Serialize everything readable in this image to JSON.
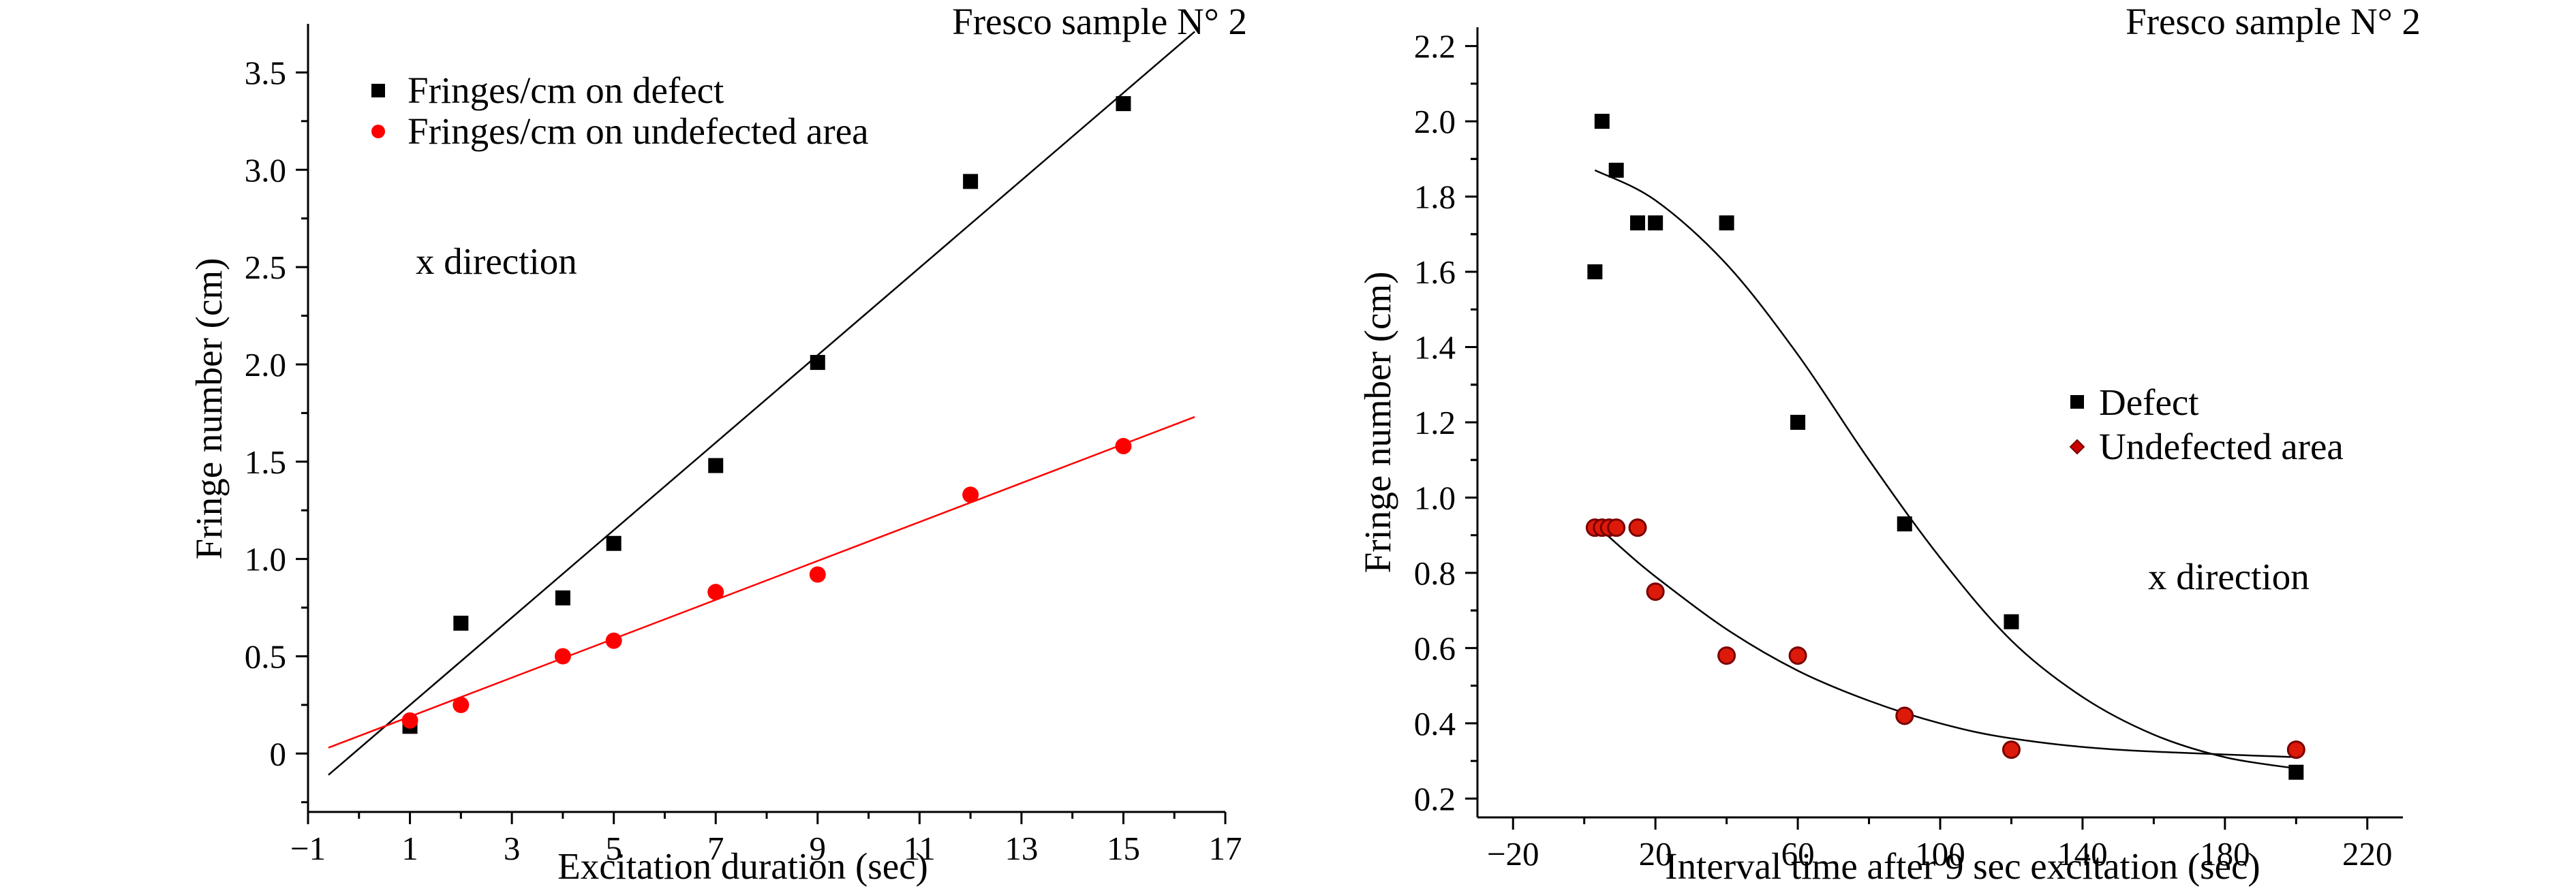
{
  "chart_data": [
    {
      "type": "scatter",
      "title": "Fresco sample N° 2",
      "xlabel": "Excitation duration (sec)",
      "ylabel": "Fringe number (cm)",
      "xlim": [
        -1,
        17
      ],
      "ylim": [
        -0.3,
        3.75
      ],
      "xticks": [
        -1,
        1,
        3,
        5,
        7,
        9,
        11,
        13,
        15,
        17
      ],
      "xtick_labels": [
        "−1",
        "1",
        "3",
        "5",
        "7",
        "9",
        "11",
        "13",
        "15",
        "17"
      ],
      "yticks": [
        0,
        0.5,
        1.0,
        1.5,
        2.0,
        2.5,
        3.0,
        3.5
      ],
      "ytick_labels": [
        "0",
        "0.5",
        "1.0",
        "1.5",
        "2.0",
        "2.5",
        "3.0",
        "3.5"
      ],
      "grid": false,
      "legend_position": "top-left",
      "annotation": "x direction",
      "series": [
        {
          "name": "Fringes/cm on defect",
          "marker": "square",
          "color": "#000000",
          "x": [
            1,
            2,
            4,
            5,
            7,
            9,
            12,
            15
          ],
          "y": [
            0.14,
            0.67,
            0.8,
            1.08,
            1.48,
            2.01,
            2.94,
            3.34
          ],
          "fit": "linear",
          "fit_x": [
            -0.6,
            16.4
          ],
          "fit_y": [
            -0.11,
            3.71
          ]
        },
        {
          "name": "Fringes/cm on undefected area",
          "marker": "circle",
          "color": "#ff0000",
          "x": [
            1,
            2,
            4,
            5,
            7,
            9,
            12,
            15
          ],
          "y": [
            0.17,
            0.25,
            0.5,
            0.58,
            0.83,
            0.92,
            1.33,
            1.58
          ],
          "fit": "linear",
          "fit_x": [
            -0.6,
            16.4
          ],
          "fit_y": [
            0.03,
            1.73
          ]
        }
      ]
    },
    {
      "type": "scatter",
      "title": "Fresco sample N° 2",
      "xlabel": "Interval time after 9 sec excitation (sec)",
      "ylabel": "Fringe number (cm)",
      "xlim": [
        -30,
        230
      ],
      "ylim": [
        0.15,
        2.25
      ],
      "xticks": [
        -20,
        20,
        60,
        100,
        140,
        180,
        220
      ],
      "xtick_labels": [
        "−20",
        "20",
        "60",
        "100",
        "140",
        "180",
        "220"
      ],
      "yticks": [
        0.2,
        0.4,
        0.6,
        0.8,
        1.0,
        1.2,
        1.4,
        1.6,
        1.8,
        2.0,
        2.2
      ],
      "ytick_labels": [
        "0.2",
        "0.4",
        "0.6",
        "0.8",
        "1.0",
        "1.2",
        "1.4",
        "1.6",
        "1.8",
        "2.0",
        "2.2"
      ],
      "grid": false,
      "legend_position": "right",
      "annotation": "x direction",
      "series": [
        {
          "name": "Defect",
          "marker": "square",
          "color": "#000000",
          "x": [
            3,
            5,
            9,
            15,
            20,
            40,
            60,
            90,
            120,
            200
          ],
          "y": [
            1.6,
            2.0,
            1.87,
            1.73,
            1.73,
            1.73,
            1.2,
            0.93,
            0.67,
            0.27
          ],
          "fit": "sigmoid",
          "fit_x": [
            3,
            20,
            40,
            60,
            80,
            100,
            120,
            140,
            160,
            180,
            200
          ],
          "fit_y": [
            1.87,
            1.79,
            1.62,
            1.38,
            1.1,
            0.84,
            0.62,
            0.47,
            0.37,
            0.31,
            0.28
          ]
        },
        {
          "name": "Undefected area",
          "marker": "circle",
          "color": "#ff0000",
          "x": [
            3,
            5,
            7,
            9,
            15,
            20,
            40,
            60,
            90,
            120,
            200
          ],
          "y": [
            0.92,
            0.92,
            0.92,
            0.92,
            0.92,
            0.75,
            0.58,
            0.58,
            0.42,
            0.33,
            0.33
          ],
          "fit": "exponential",
          "fit_x": [
            3,
            10,
            20,
            40,
            60,
            80,
            100,
            120,
            150,
            200
          ],
          "fit_y": [
            0.93,
            0.87,
            0.79,
            0.65,
            0.54,
            0.46,
            0.4,
            0.36,
            0.33,
            0.31
          ]
        }
      ]
    }
  ]
}
